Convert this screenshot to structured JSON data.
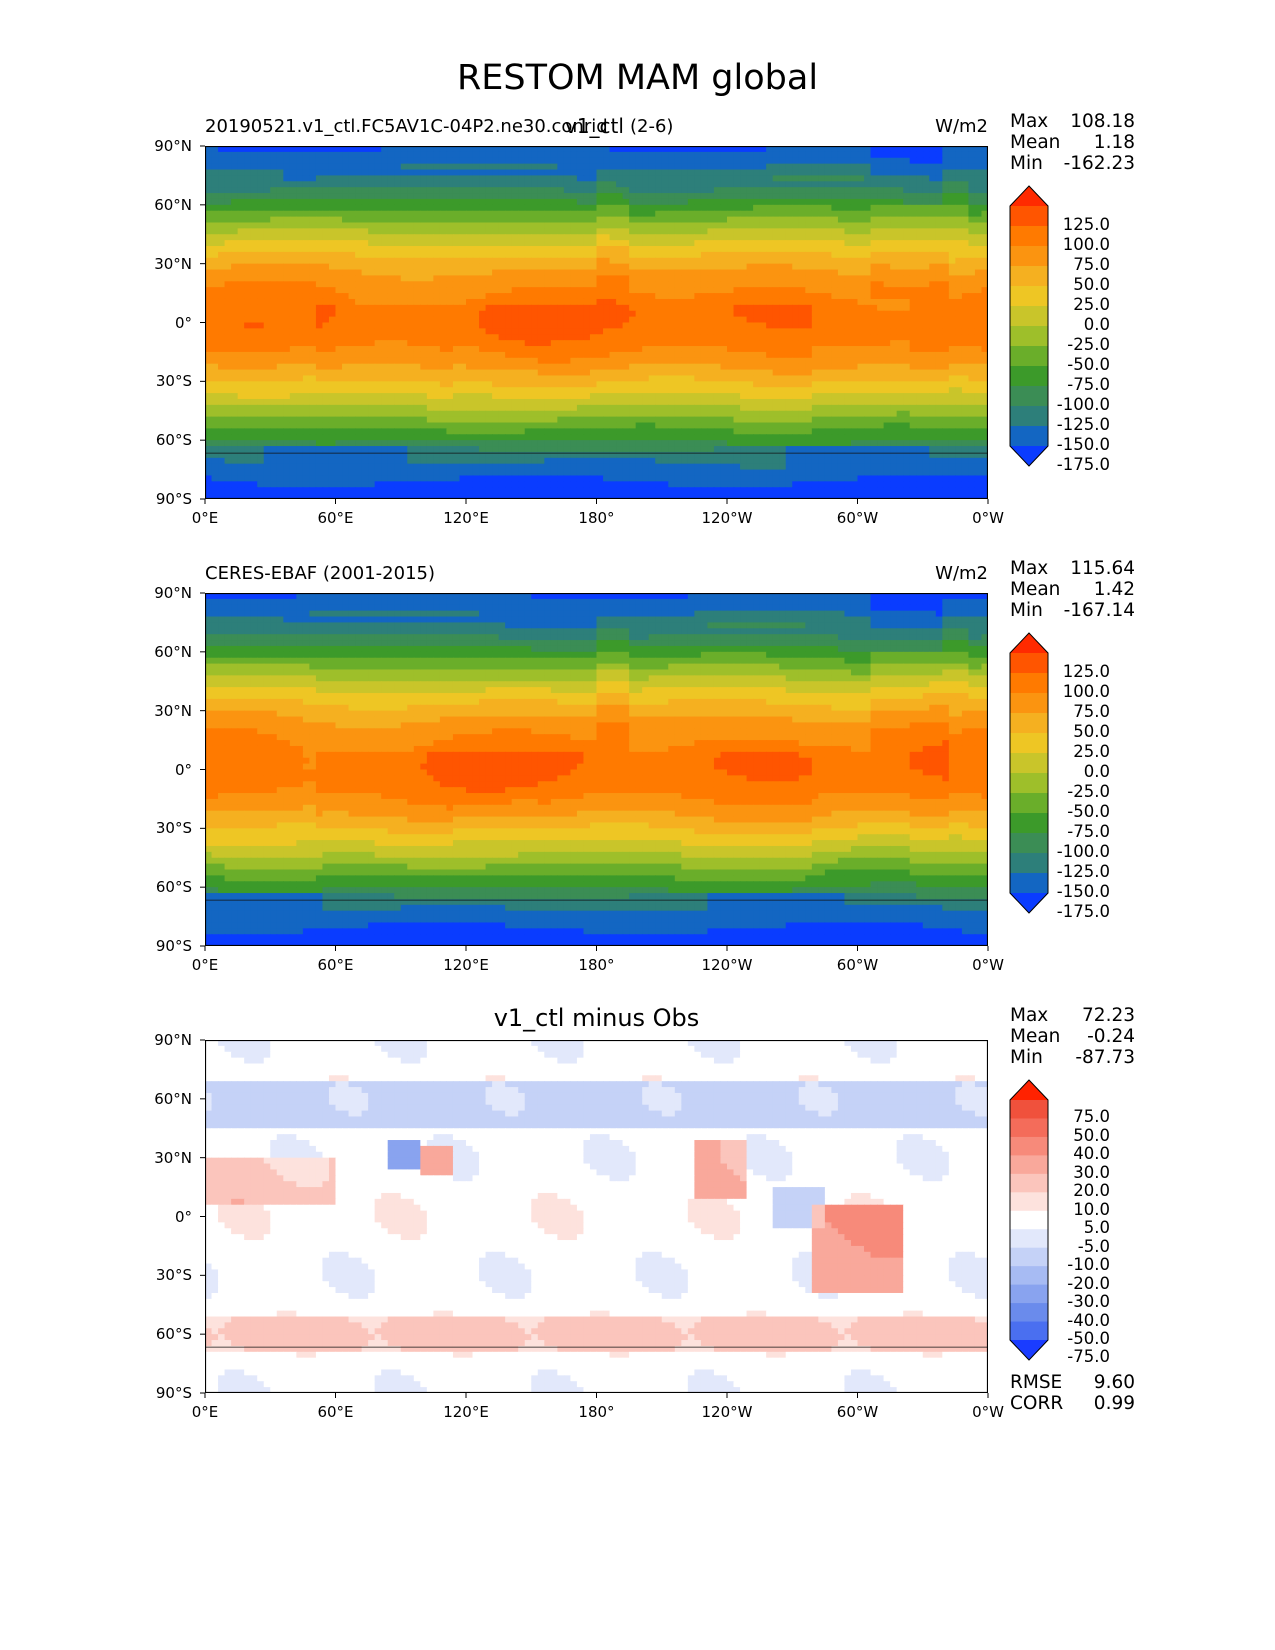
{
  "suptitle": "RESTOM MAM global",
  "panels": [
    {
      "left_title": "20190521.v1_ctl.FC5AV1C-04P2.ne30.conrid",
      "center_title": "v1_ctl",
      "right_title": "(2-6)",
      "units": "W/m2",
      "stats": [
        {
          "label": "Max",
          "value": "108.18"
        },
        {
          "label": "Mean",
          "value": "1.18"
        },
        {
          "label": "Min",
          "value": "-162.23"
        }
      ],
      "colorbar": {
        "labels": [
          "125.0",
          "100.0",
          "75.0",
          "50.0",
          "25.0",
          "0.0",
          "-25.0",
          "-50.0",
          "-75.0",
          "-100.0",
          "-125.0",
          "-150.0",
          "-175.0"
        ],
        "colors": [
          "#ff2a00",
          "#ff5500",
          "#ff7a00",
          "#fb9410",
          "#f5b020",
          "#eec624",
          "#c9c52a",
          "#9ebf2a",
          "#6aae2a",
          "#3c9a2a",
          "#3b8d55",
          "#2d7f7a",
          "#1366c2",
          "#0a3cff"
        ]
      },
      "field": "restom",
      "variant": 0
    },
    {
      "left_title": "CERES-EBAF (2001-2015)",
      "center_title": "",
      "right_title": "",
      "units": "W/m2",
      "stats": [
        {
          "label": "Max",
          "value": "115.64"
        },
        {
          "label": "Mean",
          "value": "1.42"
        },
        {
          "label": "Min",
          "value": "-167.14"
        }
      ],
      "colorbar": {
        "labels": [
          "125.0",
          "100.0",
          "75.0",
          "50.0",
          "25.0",
          "0.0",
          "-25.0",
          "-50.0",
          "-75.0",
          "-100.0",
          "-125.0",
          "-150.0",
          "-175.0"
        ],
        "colors": [
          "#ff2a00",
          "#ff5500",
          "#ff7a00",
          "#fb9410",
          "#f5b020",
          "#eec624",
          "#c9c52a",
          "#9ebf2a",
          "#6aae2a",
          "#3c9a2a",
          "#3b8d55",
          "#2d7f7a",
          "#1366c2",
          "#0a3cff"
        ]
      },
      "field": "restom",
      "variant": 1
    },
    {
      "left_title": "",
      "center_title": "v1_ctl minus Obs",
      "right_title": "",
      "units": "",
      "stats": [
        {
          "label": "Max",
          "value": "72.23"
        },
        {
          "label": "Mean",
          "value": "-0.24"
        },
        {
          "label": "Min",
          "value": "-87.73"
        }
      ],
      "bottom_stats": [
        {
          "label": "RMSE",
          "value": "9.60"
        },
        {
          "label": "CORR",
          "value": "0.99"
        }
      ],
      "colorbar": {
        "labels": [
          "75.0",
          "50.0",
          "40.0",
          "30.0",
          "20.0",
          "10.0",
          "5.0",
          "-5.0",
          "-10.0",
          "-20.0",
          "-30.0",
          "-40.0",
          "-50.0",
          "-75.0"
        ],
        "colors": [
          "#ff2200",
          "#f0513c",
          "#f46c5a",
          "#f78a7a",
          "#f9a89b",
          "#fbc5bc",
          "#fde2dd",
          "#ffffff",
          "#e2e8fb",
          "#c5d2f7",
          "#a7bbf3",
          "#89a3ef",
          "#6a8bec",
          "#4a6ff0",
          "#1a3cff"
        ]
      },
      "field": "diff",
      "variant": 2
    }
  ],
  "axes": {
    "x_ticks": [
      "0°E",
      "60°E",
      "120°E",
      "180°",
      "120°W",
      "60°W",
      "0°W"
    ],
    "y_ticks": [
      "90°N",
      "60°N",
      "30°N",
      "0°",
      "30°S",
      "60°S",
      "90°S"
    ]
  },
  "chart_data": [
    {
      "type": "heatmap",
      "title": "v1_ctl",
      "xlim": [
        0,
        360
      ],
      "ylim": [
        -90,
        90
      ],
      "units": "W/m2",
      "max": 108.18,
      "mean": 1.18,
      "min": -162.23
    },
    {
      "type": "heatmap",
      "title": "CERES-EBAF (2001-2015)",
      "xlim": [
        0,
        360
      ],
      "ylim": [
        -90,
        90
      ],
      "units": "W/m2",
      "max": 115.64,
      "mean": 1.42,
      "min": -167.14
    },
    {
      "type": "heatmap",
      "title": "v1_ctl minus Obs",
      "xlim": [
        0,
        360
      ],
      "ylim": [
        -90,
        90
      ],
      "max": 72.23,
      "mean": -0.24,
      "min": -87.73,
      "rmse": 9.6,
      "corr": 0.99
    }
  ]
}
